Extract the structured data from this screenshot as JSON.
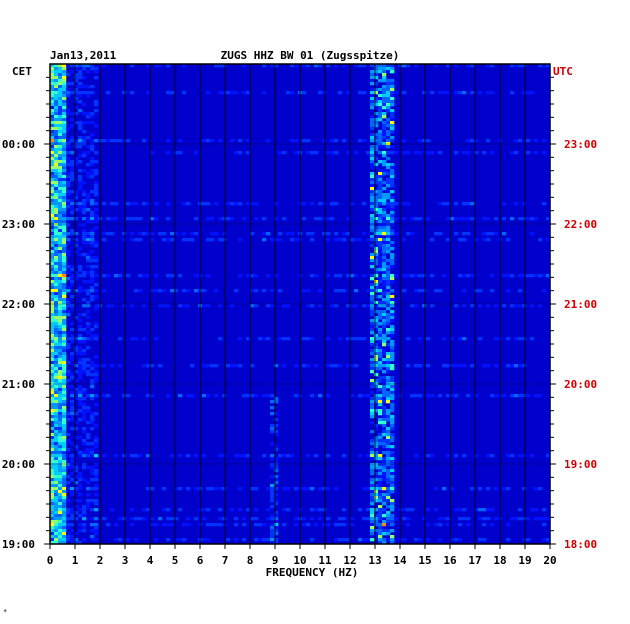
{
  "header": {
    "date": "Jan13,2011",
    "station": "ZUGS HHZ BW 01 (Zugsspitze)",
    "left_tz": "CET",
    "right_tz": "UTC"
  },
  "footer_mark": "*",
  "colors": {
    "background": "#0000cc",
    "left_axis_text": "#000000",
    "right_axis_text": "#cc0000",
    "gridline": "#000000"
  },
  "chart_data": {
    "type": "heatmap",
    "title": "ZUGS HHZ BW 01 (Zugsspitze)",
    "xlabel": "FREQUENCY (HZ)",
    "ylabel": "",
    "xlim": [
      0,
      20
    ],
    "x_ticks": [
      "0",
      "1",
      "2",
      "3",
      "4",
      "5",
      "6",
      "7",
      "8",
      "9",
      "10",
      "11",
      "12",
      "13",
      "14",
      "15",
      "16",
      "17",
      "18",
      "19",
      "20"
    ],
    "y_ticks_left": [
      "00:00",
      "23:00",
      "22:00",
      "21:00",
      "20:00",
      "19:00"
    ],
    "y_ticks_right": [
      "23:00",
      "22:00",
      "21:00",
      "20:00",
      "19:00",
      "18:00"
    ],
    "grid": true,
    "hot_bands_hz": [
      {
        "from": 0,
        "to": 0.6,
        "note": "strong low-frequency energy"
      },
      {
        "from": 12.8,
        "to": 13.8,
        "note": "persistent narrow band"
      },
      {
        "from": 8.8,
        "to": 9.2,
        "note": "weak band in early hours"
      }
    ]
  }
}
